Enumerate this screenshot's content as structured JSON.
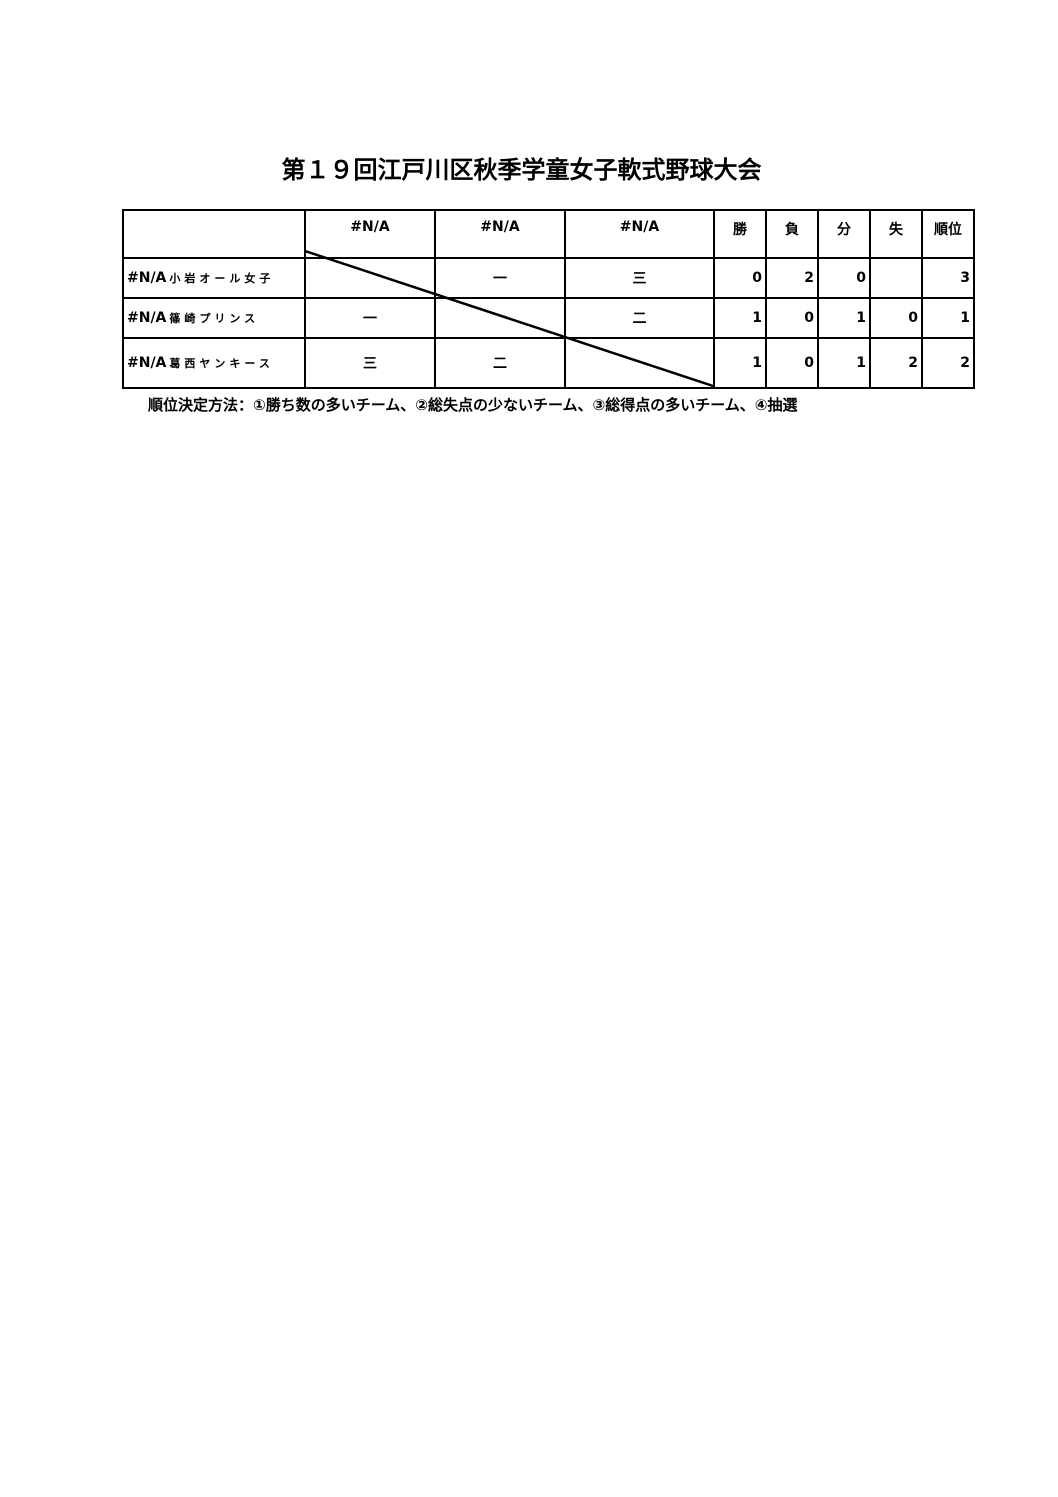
{
  "title": "第１９回江戸川区秋季学童女子軟式野球大会",
  "header": {
    "blank": "",
    "opponents": [
      "#N/A",
      "#N/A",
      "#N/A"
    ],
    "stats": [
      "勝",
      "負",
      "分",
      "失",
      "順位"
    ]
  },
  "rows": [
    {
      "code": "#N/A",
      "team": "小岩オール女子",
      "results": [
        "",
        "一",
        "三"
      ],
      "stats": [
        "0",
        "2",
        "0",
        "",
        "3"
      ]
    },
    {
      "code": "#N/A",
      "team": "篠崎プリンス",
      "results": [
        "一",
        "",
        "二"
      ],
      "stats": [
        "1",
        "0",
        "1",
        "0",
        "1"
      ]
    },
    {
      "code": "#N/A",
      "team": "葛西ヤンキース",
      "results": [
        "三",
        "二",
        ""
      ],
      "stats": [
        "1",
        "0",
        "1",
        "2",
        "2"
      ]
    }
  ],
  "note": "順位決定方法：①勝ち数の多いチーム、②総失点の少ないチーム、③総得点の多いチーム、④抽選"
}
